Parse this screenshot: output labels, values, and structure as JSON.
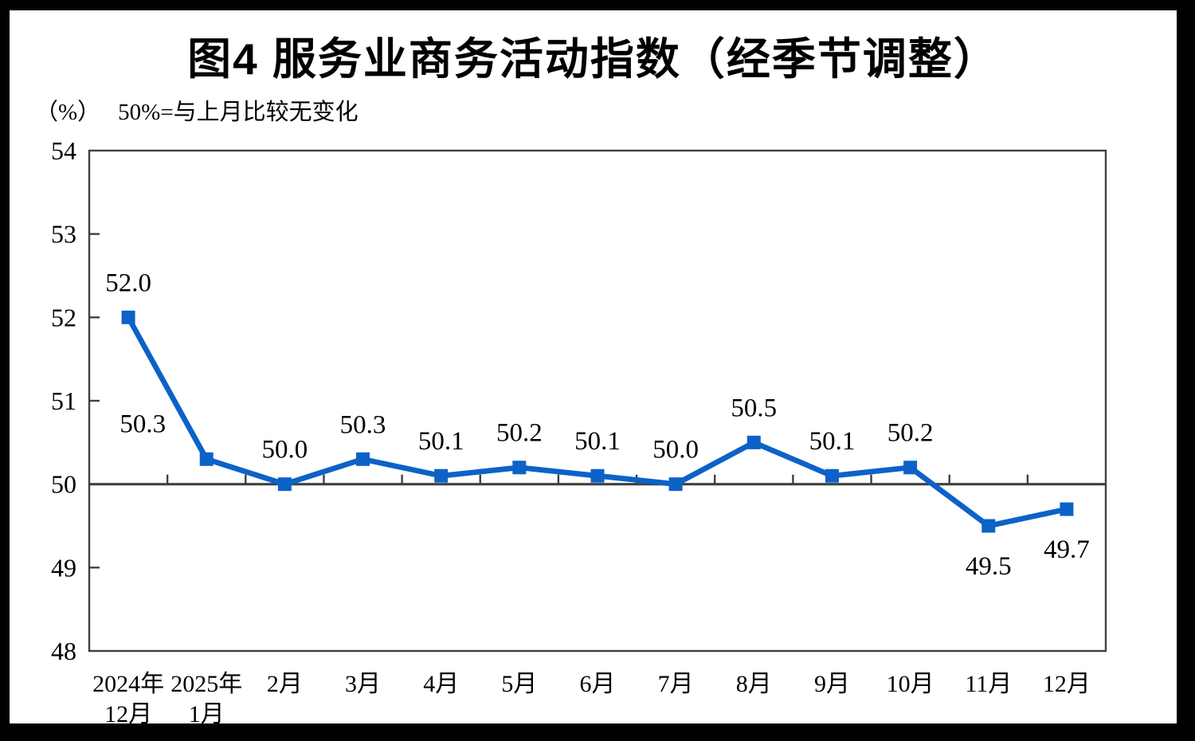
{
  "header": {
    "title": "图4  服务业商务活动指数（经季节调整）",
    "unit_label": "（%）",
    "reference_note": "50%=与上月比较无变化"
  },
  "chart_data": {
    "type": "line",
    "title": "图4 服务业商务活动指数（经季节调整）",
    "subtitle": "50%=与上月比较无变化",
    "unit": "%",
    "categories": [
      "2024年\n12月",
      "2025年\n1月",
      "2月",
      "3月",
      "4月",
      "5月",
      "6月",
      "7月",
      "8月",
      "9月",
      "10月",
      "11月",
      "12月"
    ],
    "series": [
      {
        "name": "服务业商务活动指数",
        "values": [
          52.0,
          50.3,
          50.0,
          50.3,
          50.1,
          50.2,
          50.1,
          50.0,
          50.5,
          50.1,
          50.2,
          49.5,
          49.7
        ],
        "color": "#0C62C7",
        "marker": "square"
      }
    ],
    "data_labels": [
      "52.0",
      "50.3",
      "50.0",
      "50.3",
      "50.1",
      "50.2",
      "50.1",
      "50.0",
      "50.5",
      "50.1",
      "50.2",
      "49.5",
      "49.7"
    ],
    "label_placement": [
      "above",
      "above-left",
      "above",
      "above",
      "above",
      "above",
      "above",
      "above",
      "above",
      "above",
      "above",
      "below",
      "below"
    ],
    "ylim": [
      48,
      54
    ],
    "yticks": [
      48,
      49,
      50,
      51,
      52,
      53,
      54
    ],
    "reference_line": 50,
    "grid": false,
    "legend": "none",
    "axis_color": "#404040",
    "text_color": "#000000",
    "background_color": "#ffffff",
    "frame_color": "#000000"
  }
}
